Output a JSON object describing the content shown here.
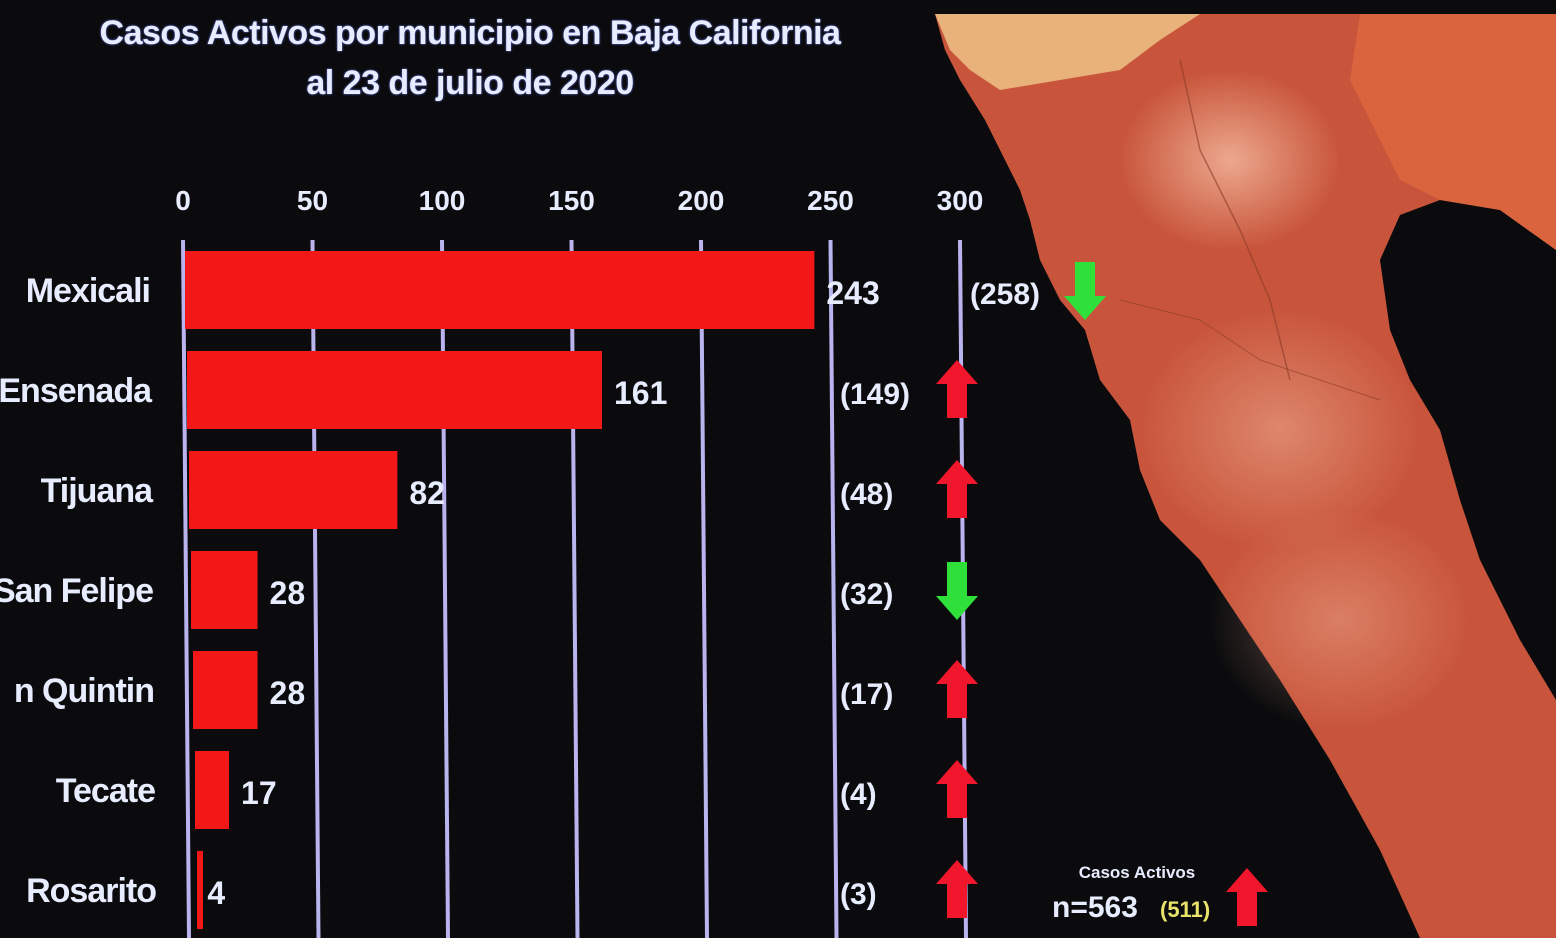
{
  "chart_data": {
    "type": "bar",
    "orientation": "horizontal",
    "title": "Casos Activos por municipio en Baja California",
    "subtitle": "al 23 de julio de 2020",
    "x_ticks": [
      "0",
      "50",
      "100",
      "150",
      "200",
      "250",
      "300"
    ],
    "xlim": [
      0,
      300
    ],
    "grid": true,
    "categories": [
      "Mexicali",
      "Ensenada",
      "Tijuana",
      "San Felipe",
      "n Quintin",
      "Tecate",
      "Rosarito"
    ],
    "values": [
      243,
      161,
      82,
      28,
      28,
      17,
      4
    ],
    "value_labels": [
      "243",
      "161",
      "82",
      "28",
      "28",
      "17",
      "4"
    ],
    "previous_labels": [
      "(258)",
      "(149)",
      "(48)",
      "(32)",
      "(17)",
      "(4)",
      "(3)"
    ],
    "previous_values": [
      258,
      149,
      48,
      32,
      17,
      4,
      3
    ],
    "trend": [
      "down",
      "up",
      "up",
      "down",
      "up",
      "up",
      "up"
    ]
  },
  "summary": {
    "label": "Casos Activos",
    "total": "n=563",
    "previous": "(511)",
    "trend": "up"
  },
  "colors": {
    "bar": "#f21818",
    "up_arrow": "#f2162c",
    "down_arrow": "#2fe03a",
    "grid": "#b9b3ee",
    "text": "#e8ecff",
    "map_land": "#c8553b",
    "map_land_light": "#e59a74",
    "map_beige": "#e8b27a"
  }
}
